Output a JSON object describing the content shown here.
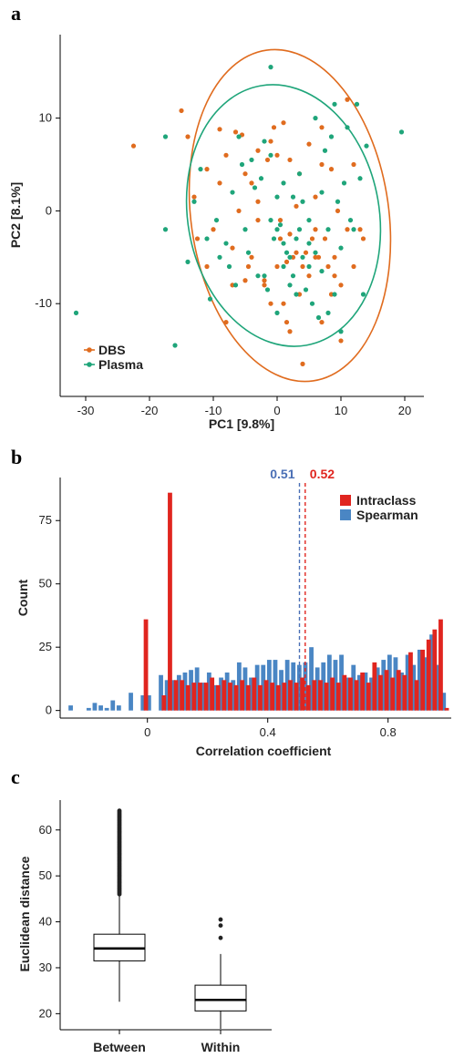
{
  "panels": [
    {
      "label": "a",
      "chart_data": {
        "type": "scatter",
        "xlabel": "PC1 [9.8%]",
        "ylabel": "PC2 [8.1%]",
        "xlim": [
          -34,
          23
        ],
        "ylim": [
          -20,
          19
        ],
        "xticks": [
          -30,
          -20,
          -10,
          0,
          10,
          20
        ],
        "yticks": [
          -10,
          0,
          10
        ],
        "legend_position": "bottom-left",
        "series": [
          {
            "name": "DBS",
            "color": "#E06C1F",
            "ellipse": {
              "cx": 2,
              "cy": -0.5,
              "rx": 15.5,
              "ry": 18,
              "angle": -8
            },
            "points": [
              [
                -22.5,
                7
              ],
              [
                -15,
                10.8
              ],
              [
                -14,
                8
              ],
              [
                -13,
                1.5
              ],
              [
                -11,
                4.5
              ],
              [
                -10,
                -2
              ],
              [
                -9,
                8.8
              ],
              [
                -8,
                6
              ],
              [
                -7,
                -4
              ],
              [
                -6.5,
                8.5
              ],
              [
                -5.5,
                8.2
              ],
              [
                -5,
                4
              ],
              [
                -4.5,
                -6
              ],
              [
                -4,
                3
              ],
              [
                -3,
                -1
              ],
              [
                -3,
                1
              ],
              [
                -2,
                -8
              ],
              [
                -1.5,
                5.5
              ],
              [
                -1,
                7.5
              ],
              [
                -0.5,
                9
              ],
              [
                0,
                6
              ],
              [
                0,
                -6
              ],
              [
                0.5,
                -3
              ],
              [
                1,
                9.5
              ],
              [
                1,
                -10
              ],
              [
                1.5,
                -12
              ],
              [
                2,
                5.5
              ],
              [
                2.5,
                -5
              ],
              [
                3,
                0.5
              ],
              [
                3,
                -4.5
              ],
              [
                3.5,
                4
              ],
              [
                3.5,
                -9
              ],
              [
                4,
                -6
              ],
              [
                4,
                -16.5
              ],
              [
                4.5,
                -4.5
              ],
              [
                5,
                7.2
              ],
              [
                5,
                -7
              ],
              [
                6,
                -5
              ],
              [
                6,
                1.5
              ],
              [
                6.5,
                -5
              ],
              [
                7,
                5
              ],
              [
                7,
                9
              ],
              [
                7.5,
                -3
              ],
              [
                8,
                -6
              ],
              [
                8.5,
                4.5
              ],
              [
                9,
                -5
              ],
              [
                9.5,
                0
              ],
              [
                10,
                -14
              ],
              [
                10,
                -8
              ],
              [
                11,
                12
              ],
              [
                11,
                -2
              ],
              [
                12,
                5
              ],
              [
                13,
                -2
              ],
              [
                13.5,
                -3
              ],
              [
                -12.5,
                -3
              ],
              [
                -7,
                -8
              ],
              [
                -5,
                -7.5
              ],
              [
                -2,
                -7.5
              ],
              [
                1.5,
                -5.5
              ],
              [
                5.5,
                -3
              ],
              [
                9,
                -7
              ],
              [
                -9,
                3
              ],
              [
                -6,
                0
              ],
              [
                -11,
                -6
              ],
              [
                -3,
                6.5
              ],
              [
                0.5,
                -1
              ],
              [
                2,
                -2.5
              ],
              [
                6,
                -2
              ],
              [
                8.5,
                -9
              ],
              [
                12,
                -6
              ],
              [
                -8,
                -12
              ],
              [
                -4,
                -5
              ],
              [
                -1,
                -10
              ],
              [
                2,
                -13
              ],
              [
                7,
                -12
              ]
            ]
          },
          {
            "name": "Plasma",
            "color": "#1FA57A",
            "ellipse": {
              "cx": 1,
              "cy": -0.5,
              "rx": 15,
              "ry": 14.2,
              "angle": -10
            },
            "points": [
              [
                -31.5,
                -11
              ],
              [
                -17.5,
                8
              ],
              [
                -17.5,
                -2
              ],
              [
                -16,
                -14.5
              ],
              [
                -14,
                -5.5
              ],
              [
                -12,
                4.5
              ],
              [
                -11,
                -3
              ],
              [
                -10.5,
                -9.5
              ],
              [
                -9,
                -5
              ],
              [
                -8,
                -3.5
              ],
              [
                -7.5,
                -6
              ],
              [
                -7,
                2
              ],
              [
                -6,
                8
              ],
              [
                -5.5,
                5
              ],
              [
                -5,
                -2
              ],
              [
                -4,
                5.5
              ],
              [
                -3,
                -7
              ],
              [
                -2.5,
                3.5
              ],
              [
                -2,
                7.5
              ],
              [
                -2,
                -7
              ],
              [
                -1.5,
                -8.5
              ],
              [
                -1,
                15.5
              ],
              [
                -1,
                6
              ],
              [
                -0.5,
                -3
              ],
              [
                0,
                1.5
              ],
              [
                0,
                -2
              ],
              [
                0.5,
                -1.5
              ],
              [
                1,
                3
              ],
              [
                1,
                -3.5
              ],
              [
                1.5,
                -4.5
              ],
              [
                2,
                -5
              ],
              [
                2.5,
                1.5
              ],
              [
                2.5,
                -7
              ],
              [
                3,
                -9
              ],
              [
                3.5,
                4
              ],
              [
                3.5,
                -2
              ],
              [
                4,
                -5
              ],
              [
                4.5,
                -8.5
              ],
              [
                5,
                -1
              ],
              [
                5,
                -6
              ],
              [
                5.5,
                -10
              ],
              [
                6,
                -4.5
              ],
              [
                6,
                10
              ],
              [
                6.5,
                -11.5
              ],
              [
                7,
                2
              ],
              [
                7.5,
                6.5
              ],
              [
                8,
                -2
              ],
              [
                8,
                -11
              ],
              [
                8.5,
                8
              ],
              [
                9,
                11.5
              ],
              [
                9.5,
                1
              ],
              [
                10,
                -13
              ],
              [
                10,
                -4
              ],
              [
                10.5,
                3
              ],
              [
                11,
                9
              ],
              [
                11.5,
                -1
              ],
              [
                12,
                -2
              ],
              [
                12.5,
                11.5
              ],
              [
                13,
                3.5
              ],
              [
                13.5,
                -9
              ],
              [
                14,
                7
              ],
              [
                19.5,
                8.5
              ],
              [
                -13,
                1
              ],
              [
                -9.5,
                -1
              ],
              [
                -6.5,
                -8
              ],
              [
                -4.5,
                -4.5
              ],
              [
                -3.5,
                2.5
              ],
              [
                -1,
                -1
              ],
              [
                1,
                -6
              ],
              [
                2,
                -8
              ],
              [
                3,
                -3
              ],
              [
                4,
                1
              ],
              [
                5,
                -3.5
              ],
              [
                7,
                -6.5
              ],
              [
                9,
                -9
              ],
              [
                0,
                -11
              ]
            ]
          }
        ]
      }
    },
    {
      "label": "b",
      "chart_data": {
        "type": "bar",
        "xlabel": "Correlation coefficient",
        "ylabel": "Count",
        "xlim": [
          -0.29,
          1.01
        ],
        "ylim": [
          -3,
          92
        ],
        "xticks": [
          0,
          0.4,
          0.8
        ],
        "yticks": [
          0,
          25,
          50,
          75
        ],
        "legend_position": "top-right",
        "bin_width": 0.0202,
        "series": [
          {
            "name": "Intraclass",
            "color": "#E0251F",
            "x": [
              -0.005,
              0.055,
              0.075,
              0.095,
              0.115,
              0.135,
              0.155,
              0.175,
              0.195,
              0.215,
              0.235,
              0.255,
              0.275,
              0.295,
              0.315,
              0.335,
              0.355,
              0.375,
              0.395,
              0.415,
              0.435,
              0.455,
              0.475,
              0.495,
              0.515,
              0.535,
              0.555,
              0.575,
              0.595,
              0.615,
              0.635,
              0.655,
              0.675,
              0.695,
              0.715,
              0.735,
              0.755,
              0.775,
              0.795,
              0.815,
              0.835,
              0.855,
              0.875,
              0.895,
              0.915,
              0.935,
              0.955,
              0.975,
              0.995
            ],
            "values": [
              36,
              6,
              86,
              12,
              12,
              10,
              11,
              11,
              11,
              13,
              10,
              12,
              11,
              10,
              12,
              10,
              13,
              10,
              12,
              11,
              10,
              11,
              12,
              11,
              13,
              10,
              12,
              12,
              11,
              13,
              11,
              14,
              13,
              12,
              15,
              11,
              19,
              14,
              16,
              13,
              16,
              14,
              23,
              12,
              24,
              28,
              32,
              36,
              1
            ]
          },
          {
            "name": "Spearman",
            "color": "#4A86C4",
            "x": [
              -0.255,
              -0.235,
              -0.215,
              -0.195,
              -0.175,
              -0.155,
              -0.135,
              -0.115,
              -0.095,
              -0.075,
              -0.055,
              -0.035,
              -0.015,
              0.005,
              0.045,
              0.065,
              0.085,
              0.105,
              0.125,
              0.145,
              0.165,
              0.185,
              0.205,
              0.225,
              0.245,
              0.265,
              0.285,
              0.305,
              0.325,
              0.345,
              0.365,
              0.385,
              0.405,
              0.425,
              0.445,
              0.465,
              0.485,
              0.505,
              0.525,
              0.545,
              0.565,
              0.585,
              0.605,
              0.625,
              0.645,
              0.665,
              0.685,
              0.705,
              0.725,
              0.745,
              0.765,
              0.785,
              0.805,
              0.825,
              0.845,
              0.865,
              0.885,
              0.905,
              0.925,
              0.945,
              0.965,
              0.985
            ],
            "values": [
              2,
              0,
              0,
              1,
              3,
              2,
              1,
              4,
              2,
              0,
              7,
              0,
              6,
              6,
              14,
              12,
              12,
              14,
              15,
              16,
              17,
              11,
              15,
              10,
              13,
              15,
              12,
              19,
              17,
              13,
              18,
              18,
              20,
              20,
              16,
              20,
              19,
              18,
              19,
              25,
              17,
              19,
              22,
              20,
              22,
              13,
              18,
              14,
              15,
              13,
              17,
              20,
              22,
              21,
              15,
              22,
              18,
              24,
              21,
              30,
              18,
              7
            ]
          }
        ],
        "reference_lines": [
          {
            "value": 0.51,
            "label": "0.51",
            "color": "#4A6FB5"
          },
          {
            "value": 0.52,
            "label": "0.52",
            "color": "#E0251F"
          }
        ]
      }
    },
    {
      "label": "c",
      "chart_data": {
        "type": "box",
        "xlabel": "",
        "ylabel": "Euclidean distance",
        "ylim": [
          16.5,
          66.5
        ],
        "yticks": [
          20,
          30,
          40,
          50,
          60
        ],
        "categories": [
          "Between",
          "Within"
        ],
        "boxes": [
          {
            "whisker_low": 22.6,
            "q1": 31.5,
            "median": 34.2,
            "q3": 37.3,
            "whisker_high": 46,
            "outliers_range": [
              46,
              64.3
            ]
          },
          {
            "whisker_low": 16.7,
            "q1": 20.6,
            "median": 23,
            "q3": 26.2,
            "whisker_high": 33,
            "outliers": [
              36.5,
              39.2,
              40.5
            ]
          }
        ]
      }
    }
  ]
}
